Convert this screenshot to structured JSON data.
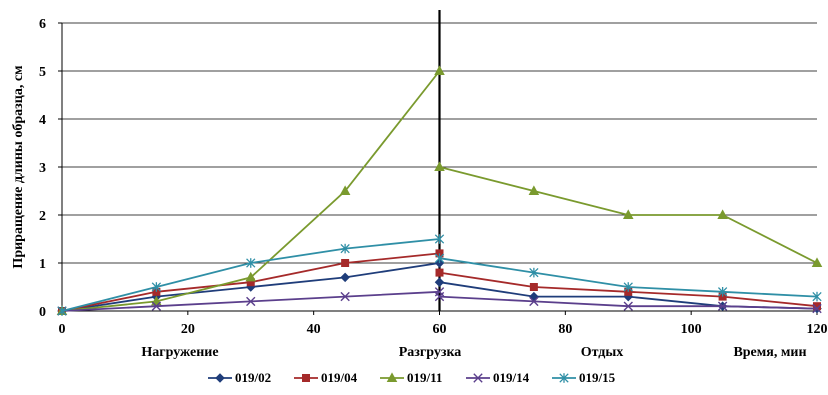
{
  "chart_data": {
    "type": "line",
    "title": "",
    "xlabel": "Время, мин",
    "ylabel": "Приращение длины образца, см",
    "xlim": [
      0,
      120
    ],
    "ylim": [
      0,
      6
    ],
    "x_ticks": [
      0,
      20,
      40,
      60,
      80,
      100,
      120
    ],
    "y_ticks": [
      0,
      1,
      2,
      3,
      4,
      5,
      6
    ],
    "grid": "horizontal",
    "legend_position": "bottom",
    "vertical_line_x": 60,
    "phase_labels": [
      "Нагружение",
      "Разгрузка",
      "Отдых"
    ],
    "series": [
      {
        "name": "019/02",
        "color": "#1f3d7a",
        "marker": "diamond",
        "loading": [
          [
            0,
            0
          ],
          [
            15,
            0.3
          ],
          [
            30,
            0.5
          ],
          [
            45,
            0.7
          ],
          [
            60,
            1.0
          ]
        ],
        "unloading": [
          [
            60,
            0.6
          ],
          [
            75,
            0.3
          ],
          [
            90,
            0.3
          ],
          [
            105,
            0.1
          ],
          [
            120,
            0.05
          ]
        ]
      },
      {
        "name": "019/04",
        "color": "#a52a2a",
        "marker": "square",
        "loading": [
          [
            0,
            0
          ],
          [
            15,
            0.4
          ],
          [
            30,
            0.6
          ],
          [
            45,
            1.0
          ],
          [
            60,
            1.2
          ]
        ],
        "unloading": [
          [
            60,
            0.8
          ],
          [
            75,
            0.5
          ],
          [
            90,
            0.4
          ],
          [
            105,
            0.3
          ],
          [
            120,
            0.1
          ]
        ]
      },
      {
        "name": "019/11",
        "color": "#7a9a2e",
        "marker": "triangle",
        "loading": [
          [
            0,
            0
          ],
          [
            15,
            0.2
          ],
          [
            30,
            0.7
          ],
          [
            45,
            2.5
          ],
          [
            60,
            5.0
          ]
        ],
        "unloading": [
          [
            60,
            3.0
          ],
          [
            75,
            2.5
          ],
          [
            90,
            2.0
          ],
          [
            105,
            2.0
          ],
          [
            120,
            1.0
          ]
        ]
      },
      {
        "name": "019/14",
        "color": "#5b3f8c",
        "marker": "x",
        "loading": [
          [
            0,
            0
          ],
          [
            15,
            0.1
          ],
          [
            30,
            0.2
          ],
          [
            45,
            0.3
          ],
          [
            60,
            0.4
          ]
        ],
        "unloading": [
          [
            60,
            0.3
          ],
          [
            75,
            0.2
          ],
          [
            90,
            0.1
          ],
          [
            105,
            0.1
          ],
          [
            120,
            0.05
          ]
        ]
      },
      {
        "name": "019/15",
        "color": "#2f8fa6",
        "marker": "star",
        "loading": [
          [
            0,
            0
          ],
          [
            15,
            0.5
          ],
          [
            30,
            1.0
          ],
          [
            45,
            1.3
          ],
          [
            60,
            1.5
          ]
        ],
        "unloading": [
          [
            60,
            1.1
          ],
          [
            75,
            0.8
          ],
          [
            90,
            0.5
          ],
          [
            105,
            0.4
          ],
          [
            120,
            0.3
          ]
        ]
      }
    ]
  }
}
